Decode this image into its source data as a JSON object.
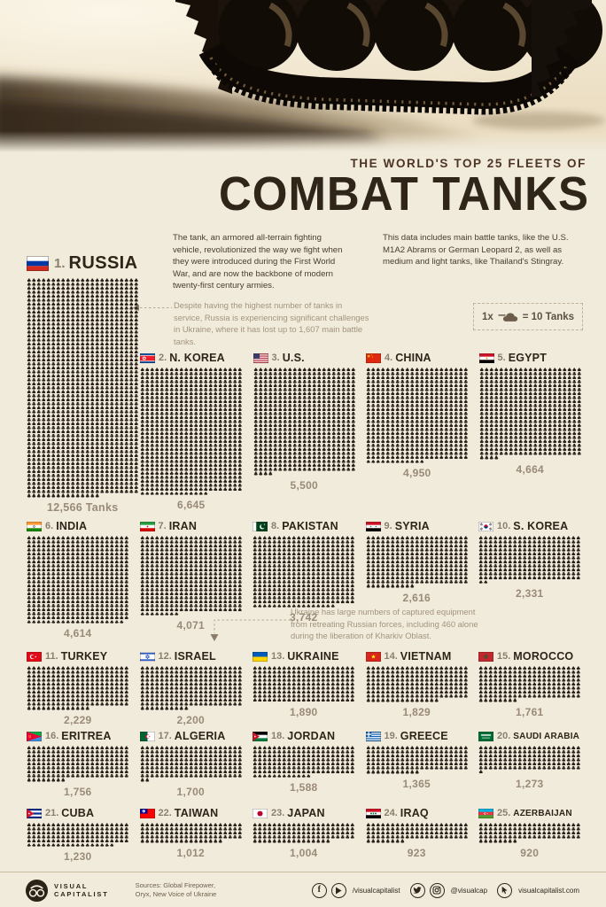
{
  "colors": {
    "page_bg": "#f1ebdc",
    "title_ink": "#2f2518",
    "kicker_ink": "#4e3424",
    "pictogram_ink": "#2a211a",
    "note_ink": "#a3947d",
    "value_ink": "#9a8a77"
  },
  "header": {
    "kicker": "THE WORLD'S TOP 25 FLEETS OF",
    "title": "COMBAT TANKS"
  },
  "intro": {
    "left": "The tank, an armored all-terrain fighting vehicle, revolutionized the way we fight when they were introduced during the First World War, and are now the backbone of modern twenty-first century armies.",
    "right": "This data includes main battle tanks, like the U.S. M1A2 Abrams or German Leopard 2, as well as medium and light tanks, like Thailand's Stingray."
  },
  "notes": {
    "russia": "Despite having the highest number of tanks in service, Russia is experiencing significant challenges in Ukraine, where it has lost up to 1,607 main battle tanks.",
    "ukraine": "Ukraine has large numbers of captured equipment from retreating Russian forces, including 460 alone during the liberation of Kharkiv Oblast."
  },
  "legend": {
    "prefix": "1x",
    "equals": "= 10 Tanks"
  },
  "chart_data": {
    "type": "pictogram",
    "title": "The World's Top 25 Fleets of Combat Tanks",
    "unit_per_icon": 10,
    "icon": "tank-icon",
    "countries": [
      {
        "rank": 1,
        "name": "RUSSIA",
        "flag": "ru",
        "value": 12566,
        "label": "12,566 Tanks"
      },
      {
        "rank": 2,
        "name": "N. KOREA",
        "flag": "kp",
        "value": 6645,
        "label": "6,645"
      },
      {
        "rank": 3,
        "name": "U.S.",
        "flag": "us",
        "value": 5500,
        "label": "5,500"
      },
      {
        "rank": 4,
        "name": "CHINA",
        "flag": "cn",
        "value": 4950,
        "label": "4,950"
      },
      {
        "rank": 5,
        "name": "EGYPT",
        "flag": "eg",
        "value": 4664,
        "label": "4,664"
      },
      {
        "rank": 6,
        "name": "INDIA",
        "flag": "in",
        "value": 4614,
        "label": "4,614"
      },
      {
        "rank": 7,
        "name": "IRAN",
        "flag": "ir",
        "value": 4071,
        "label": "4,071"
      },
      {
        "rank": 8,
        "name": "PAKISTAN",
        "flag": "pk",
        "value": 3742,
        "label": "3,742"
      },
      {
        "rank": 9,
        "name": "SYRIA",
        "flag": "sy",
        "value": 2616,
        "label": "2,616"
      },
      {
        "rank": 10,
        "name": "S. KOREA",
        "flag": "kr",
        "value": 2331,
        "label": "2,331"
      },
      {
        "rank": 11,
        "name": "TURKEY",
        "flag": "tr",
        "value": 2229,
        "label": "2,229"
      },
      {
        "rank": 12,
        "name": "ISRAEL",
        "flag": "il",
        "value": 2200,
        "label": "2,200"
      },
      {
        "rank": 13,
        "name": "UKRAINE",
        "flag": "ua",
        "value": 1890,
        "label": "1,890"
      },
      {
        "rank": 14,
        "name": "VIETNAM",
        "flag": "vn",
        "value": 1829,
        "label": "1,829"
      },
      {
        "rank": 15,
        "name": "MOROCCO",
        "flag": "ma",
        "value": 1761,
        "label": "1,761"
      },
      {
        "rank": 16,
        "name": "ERITREA",
        "flag": "er",
        "value": 1756,
        "label": "1,756"
      },
      {
        "rank": 17,
        "name": "ALGERIA",
        "flag": "dz",
        "value": 1700,
        "label": "1,700"
      },
      {
        "rank": 18,
        "name": "JORDAN",
        "flag": "jo",
        "value": 1588,
        "label": "1,588"
      },
      {
        "rank": 19,
        "name": "GREECE",
        "flag": "gr",
        "value": 1365,
        "label": "1,365"
      },
      {
        "rank": 20,
        "name": "SAUDI ARABIA",
        "flag": "sa",
        "value": 1273,
        "label": "1,273"
      },
      {
        "rank": 21,
        "name": "CUBA",
        "flag": "cu",
        "value": 1230,
        "label": "1,230"
      },
      {
        "rank": 22,
        "name": "TAIWAN",
        "flag": "tw",
        "value": 1012,
        "label": "1,012"
      },
      {
        "rank": 23,
        "name": "JAPAN",
        "flag": "jp",
        "value": 1004,
        "label": "1,004"
      },
      {
        "rank": 24,
        "name": "IRAQ",
        "flag": "iq",
        "value": 923,
        "label": "923"
      },
      {
        "rank": 25,
        "name": "AZERBAIJAN",
        "flag": "az",
        "value": 920,
        "label": "920"
      }
    ]
  },
  "footer": {
    "brand_line1": "VISUAL",
    "brand_line2": "CAPITALIST",
    "sources_line1": "Sources: Global Firepower,",
    "sources_line2": "Oryx, New Voice of Ukraine",
    "social_handle1": "/visualcapitalist",
    "social_handle2": "@visualcap",
    "website": "visualcapitalist.com"
  }
}
